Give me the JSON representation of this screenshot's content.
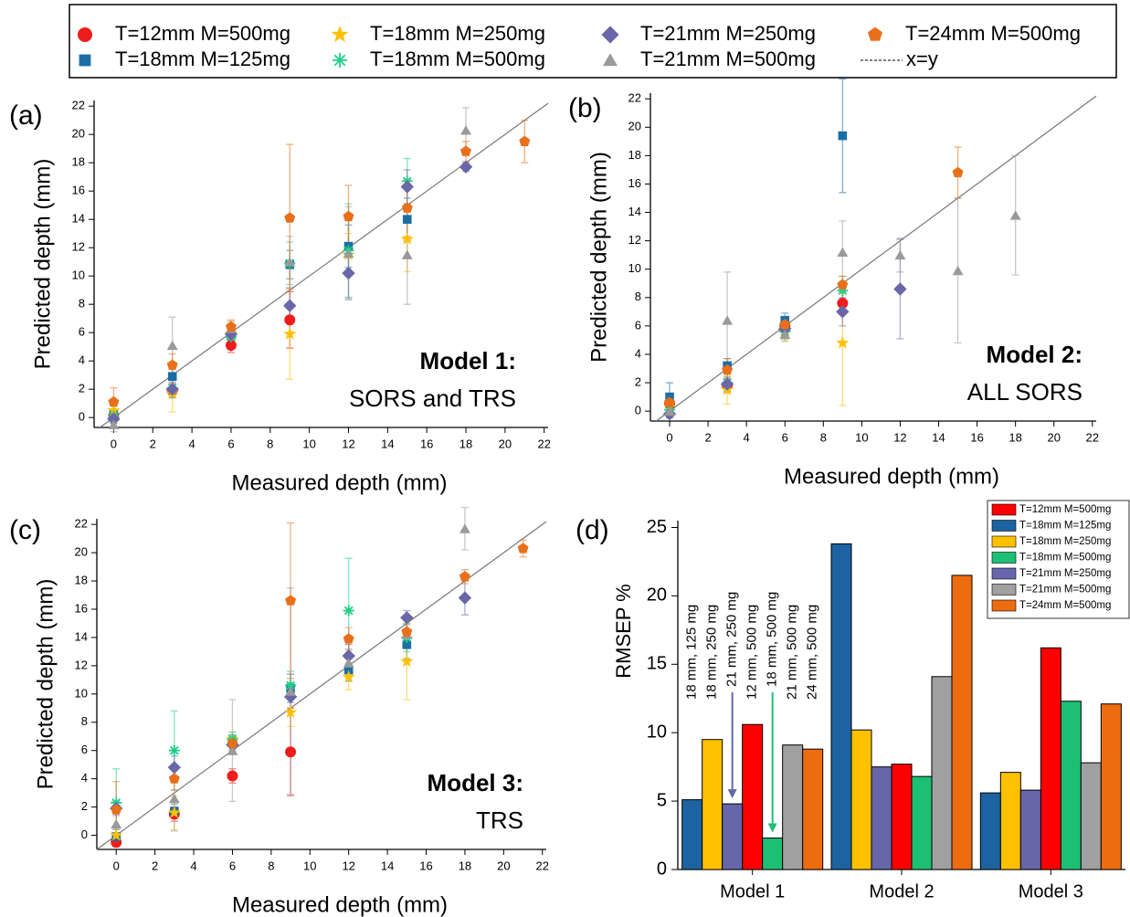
{
  "chart_data": [
    {
      "type": "scatter",
      "label": "(a)",
      "xlabel": "Measured depth (mm)",
      "ylabel": "Predicted depth (mm)",
      "annotation": [
        "Model 1:",
        "SORS and TRS"
      ],
      "xlim": [
        -1,
        22.2
      ],
      "ylim": [
        -0.7,
        22.4
      ],
      "xticks": [
        0,
        2,
        4,
        6,
        8,
        10,
        12,
        14,
        16,
        18,
        20,
        22
      ],
      "yticks": [
        0,
        2,
        4,
        6,
        8,
        10,
        12,
        14,
        16,
        18,
        20,
        22
      ],
      "diagonal": true,
      "diagonal_label": "x=y",
      "series": [
        {
          "name": "T=12mm M=500mg",
          "color": "#ee1c1c",
          "marker": "circle",
          "x": [
            0,
            3,
            6,
            9
          ],
          "values": [
            0.1,
            1.9,
            5.1,
            6.9
          ],
          "errors": [
            0.3,
            0.5,
            0.5,
            2.0
          ]
        },
        {
          "name": "T=18mm M=125mg",
          "color": "#1b6ea5",
          "marker": "square",
          "x": [
            0,
            3,
            6,
            9,
            12,
            15
          ],
          "values": [
            0.3,
            2.9,
            5.8,
            10.8,
            12.1,
            14.0
          ],
          "errors": [
            0.5,
            0.8,
            0.5,
            1.0,
            1.5,
            1.5
          ]
        },
        {
          "name": "T=18mm M=250mg",
          "color": "#ffc000",
          "marker": "star",
          "x": [
            0,
            3,
            6,
            9,
            12,
            15
          ],
          "values": [
            0.5,
            1.7,
            5.9,
            5.9,
            11.5,
            12.6
          ],
          "errors": [
            0.5,
            1.3,
            0.8,
            3.2,
            1.5,
            2.3
          ]
        },
        {
          "name": "T=18mm M=500mg",
          "color": "#1fcf86",
          "marker": "asterisk",
          "x": [
            0,
            3,
            6,
            9,
            12,
            15
          ],
          "values": [
            0.1,
            2.1,
            5.7,
            10.9,
            11.8,
            16.7
          ],
          "errors": [
            0.5,
            0.7,
            0.5,
            1.5,
            3.3,
            1.6
          ]
        },
        {
          "name": "T=21mm M=250mg",
          "color": "#6a67a8",
          "marker": "diamond",
          "x": [
            0,
            3,
            6,
            9,
            12,
            15,
            18
          ],
          "values": [
            -0.1,
            2.0,
            5.9,
            7.9,
            10.2,
            16.3,
            17.7
          ],
          "errors": [
            0.3,
            0.5,
            0.5,
            1.2,
            1.8,
            1.2,
            0.3
          ]
        },
        {
          "name": "T=21mm M=500mg",
          "color": "#9a9a9a",
          "marker": "triangle",
          "x": [
            0,
            3,
            6,
            9,
            12,
            15,
            18
          ],
          "values": [
            -0.5,
            5.1,
            6.3,
            11.0,
            11.6,
            11.5,
            20.3
          ],
          "errors": [
            0.5,
            2.0,
            0.5,
            1.8,
            3.3,
            3.5,
            1.6
          ]
        },
        {
          "name": "T=24mm M=500mg",
          "color": "#e8701a",
          "marker": "pentagon",
          "x": [
            0,
            3,
            6,
            9,
            12,
            15,
            18,
            21
          ],
          "values": [
            1.1,
            3.7,
            6.4,
            14.1,
            14.2,
            14.8,
            18.8,
            19.5
          ],
          "errors": [
            1.0,
            0.8,
            0.5,
            5.2,
            2.2,
            2.0,
            0.7,
            1.5
          ]
        }
      ]
    },
    {
      "type": "scatter",
      "label": "(b)",
      "xlabel": "Measured depth (mm)",
      "ylabel": "Predicted depth (mm)",
      "annotation": [
        "Model 2:",
        "ALL SORS"
      ],
      "xlim": [
        -1,
        22.2
      ],
      "ylim": [
        -0.7,
        22.4
      ],
      "xticks": [
        0,
        2,
        4,
        6,
        8,
        10,
        12,
        14,
        16,
        18,
        20,
        22
      ],
      "yticks": [
        0,
        2,
        4,
        6,
        8,
        10,
        12,
        14,
        16,
        18,
        20,
        22
      ],
      "diagonal": true,
      "series": [
        {
          "color": "#ee1c1c",
          "marker": "circle",
          "x": [
            0,
            3,
            6,
            9
          ],
          "values": [
            0.5,
            1.8,
            6.0,
            7.6
          ],
          "errors": [
            0.5,
            0.5,
            0.5,
            0.8
          ]
        },
        {
          "color": "#1b6ea5",
          "marker": "square",
          "x": [
            0,
            3,
            6,
            9
          ],
          "values": [
            1.0,
            3.2,
            6.4,
            19.4
          ],
          "errors": [
            1.0,
            0.5,
            0.5,
            4.0
          ]
        },
        {
          "color": "#ffc000",
          "marker": "star",
          "x": [
            0,
            3,
            6,
            9
          ],
          "values": [
            0.3,
            1.5,
            5.5,
            4.8
          ],
          "errors": [
            0.5,
            1.0,
            0.5,
            4.4
          ]
        },
        {
          "color": "#1fcf86",
          "marker": "asterisk",
          "x": [
            0,
            3,
            6,
            9
          ],
          "values": [
            0.1,
            2.0,
            5.6,
            8.5
          ],
          "errors": [
            0.5,
            0.6,
            0.5,
            1.0
          ]
        },
        {
          "color": "#6a67a8",
          "marker": "diamond",
          "x": [
            0,
            3,
            6,
            9,
            12
          ],
          "values": [
            -0.2,
            1.9,
            5.8,
            7.0,
            8.6
          ],
          "errors": [
            0.3,
            0.5,
            0.4,
            1.0,
            3.5
          ]
        },
        {
          "color": "#9a9a9a",
          "marker": "triangle",
          "x": [
            0,
            3,
            6,
            9,
            12,
            15,
            18
          ],
          "values": [
            0.0,
            6.4,
            5.4,
            11.2,
            11.0,
            9.9,
            13.8
          ],
          "errors": [
            0.3,
            3.4,
            0.5,
            2.2,
            1.2,
            5.1,
            4.2
          ]
        },
        {
          "color": "#e8701a",
          "marker": "pentagon",
          "x": [
            0,
            3,
            6,
            9,
            15
          ],
          "values": [
            0.6,
            2.9,
            6.1,
            8.9,
            16.8
          ],
          "errors": [
            0.5,
            0.8,
            0.5,
            0.6,
            1.8
          ]
        }
      ]
    },
    {
      "type": "scatter",
      "label": "(c)",
      "xlabel": "Measured depth (mm)",
      "ylabel": "Predicted depth (mm)",
      "annotation": [
        "Model 3:",
        "TRS"
      ],
      "xlim": [
        -1,
        22.2
      ],
      "ylim": [
        -1,
        22.4
      ],
      "xticks": [
        0,
        2,
        4,
        6,
        8,
        10,
        12,
        14,
        16,
        18,
        20,
        22
      ],
      "yticks": [
        0,
        2,
        4,
        6,
        8,
        10,
        12,
        14,
        16,
        18,
        20,
        22
      ],
      "diagonal": true,
      "series": [
        {
          "color": "#ee1c1c",
          "marker": "circle",
          "x": [
            0,
            3,
            6,
            9
          ],
          "values": [
            -0.5,
            1.5,
            4.2,
            5.9
          ],
          "errors": [
            0.3,
            0.5,
            0.5,
            3.1
          ]
        },
        {
          "color": "#1b6ea5",
          "marker": "square",
          "x": [
            0,
            3,
            6,
            9,
            12,
            15
          ],
          "values": [
            -0.1,
            1.7,
            6.6,
            10.4,
            11.7,
            13.5
          ],
          "errors": [
            0.5,
            0.5,
            0.5,
            1.0,
            0.8,
            1.0
          ]
        },
        {
          "color": "#ffc000",
          "marker": "star",
          "x": [
            0,
            3,
            6,
            9,
            12,
            15
          ],
          "values": [
            0.0,
            1.6,
            6.8,
            8.7,
            11.2,
            12.3
          ],
          "errors": [
            0.5,
            1.2,
            0.5,
            1.0,
            0.9,
            2.7
          ]
        },
        {
          "color": "#1fcf86",
          "marker": "asterisk",
          "x": [
            0,
            3,
            6,
            9,
            12,
            15
          ],
          "values": [
            2.3,
            6.0,
            6.8,
            10.6,
            15.9,
            14.0
          ],
          "errors": [
            2.4,
            2.8,
            0.5,
            1.0,
            3.7,
            1.0
          ]
        },
        {
          "color": "#6a67a8",
          "marker": "diamond",
          "x": [
            0,
            3,
            6,
            9,
            12,
            15,
            18
          ],
          "values": [
            1.9,
            4.8,
            6.4,
            9.8,
            12.7,
            15.4,
            16.8
          ],
          "errors": [
            0.5,
            0.8,
            0.5,
            1.0,
            0.8,
            0.5,
            1.2
          ]
        },
        {
          "color": "#9a9a9a",
          "marker": "triangle",
          "x": [
            0,
            3,
            6,
            9,
            12,
            15,
            18
          ],
          "values": [
            0.8,
            2.6,
            6.0,
            10.2,
            12.2,
            14.2,
            21.7
          ],
          "errors": [
            0.8,
            2.3,
            3.6,
            7.3,
            1.0,
            1.0,
            1.5
          ]
        },
        {
          "color": "#e8701a",
          "marker": "pentagon",
          "x": [
            0,
            3,
            6,
            9,
            12,
            15,
            18,
            21
          ],
          "values": [
            1.8,
            4.0,
            6.5,
            16.6,
            13.9,
            14.4,
            18.3,
            20.3
          ],
          "errors": [
            2.0,
            0.8,
            0.5,
            5.5,
            0.8,
            0.8,
            0.5,
            0.6
          ]
        }
      ]
    },
    {
      "type": "bar",
      "label": "(d)",
      "ylabel": "RMSEP %",
      "categories": [
        "Model 1",
        "Model 2",
        "Model 3"
      ],
      "ylim": [
        0,
        25.5
      ],
      "yticks": [
        0,
        5,
        10,
        15,
        20,
        25
      ],
      "series": [
        {
          "name": "T=12mm M=500mg",
          "color": "#ff0000",
          "values": [
            10.6,
            7.7,
            16.2
          ]
        },
        {
          "name": "T=18mm M=125mg",
          "color": "#1d63a1",
          "values": [
            5.1,
            23.8,
            5.6
          ]
        },
        {
          "name": "T=18mm M=250mg",
          "color": "#ffc000",
          "values": [
            9.5,
            10.2,
            7.1
          ]
        },
        {
          "name": "T=18mm M=500mg",
          "color": "#1cc072",
          "values": [
            2.3,
            6.8,
            12.3
          ]
        },
        {
          "name": "T=21mm M=250mg",
          "color": "#6666aa",
          "values": [
            4.8,
            7.5,
            5.8
          ]
        },
        {
          "name": "T=21mm M=500mg",
          "color": "#a0a0a0",
          "values": [
            9.1,
            14.1,
            7.8
          ]
        },
        {
          "name": "T=24mm M=500mg",
          "color": "#ee6c10",
          "values": [
            8.8,
            21.5,
            12.1
          ]
        }
      ],
      "annotations": [
        {
          "text": "12 mm, 500 mg",
          "color": "#ff0000",
          "arrow": false
        },
        {
          "text": "18 mm, 125 mg",
          "color": "#1d63a1",
          "arrow": false
        },
        {
          "text": "18 mm, 250 mg",
          "color": "#ffc000",
          "arrow": false
        },
        {
          "text": "18 mm, 500 mg",
          "color": "#1cc072",
          "arrow": true
        },
        {
          "text": "21 mm, 250 mg",
          "color": "#6666aa",
          "arrow": true
        },
        {
          "text": "21 mm, 500 mg",
          "color": "#a0a0a0",
          "arrow": false
        },
        {
          "text": "24 mm, 500 mg",
          "color": "#ee6c10",
          "arrow": false
        }
      ]
    }
  ]
}
